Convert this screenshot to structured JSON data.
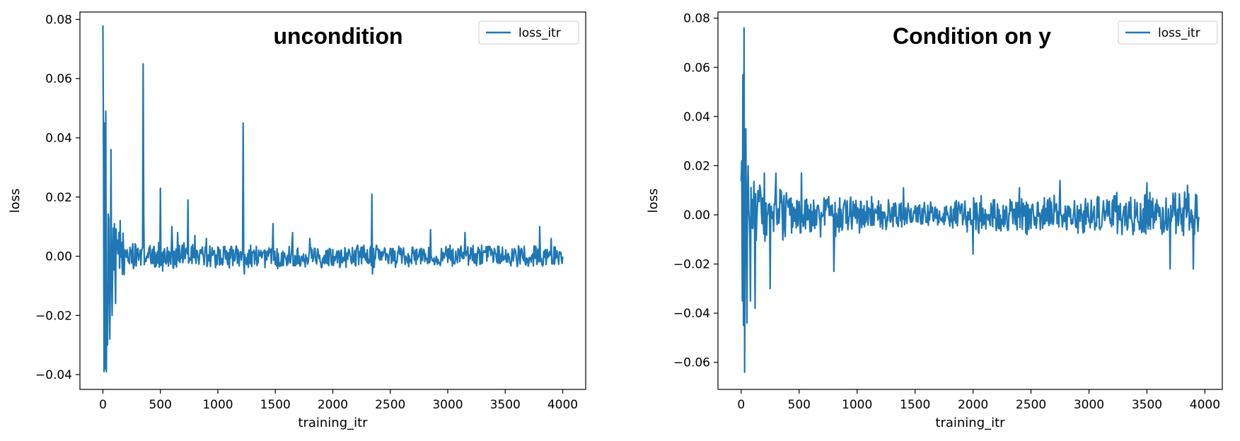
{
  "chart_data": [
    {
      "type": "line",
      "title": "",
      "annotation": "uncondition",
      "xlabel": "training_itr",
      "ylabel": "loss",
      "xlim": [
        -200,
        4200
      ],
      "ylim": [
        -0.045,
        0.0825
      ],
      "xticks": [
        0,
        500,
        1000,
        1500,
        2000,
        2500,
        3000,
        3500,
        4000
      ],
      "xtick_labels": [
        "0",
        "500",
        "1000",
        "1500",
        "2000",
        "2500",
        "3000",
        "3500",
        "4000"
      ],
      "yticks": [
        -0.04,
        -0.02,
        0.0,
        0.02,
        0.04,
        0.06,
        0.08
      ],
      "ytick_labels": [
        "−0.04",
        "−0.02",
        "0.00",
        "0.02",
        "0.04",
        "0.06",
        "0.08"
      ],
      "legend_position": "top-right",
      "grid": false,
      "series": [
        {
          "name": "loss_itr",
          "color": "#1f77b4",
          "x_range": [
            0,
            4000
          ],
          "noise_profile": [
            [
              0,
              0.02
            ],
            [
              100,
              0.01
            ],
            [
              300,
              0.005
            ],
            [
              1000,
              0.004
            ],
            [
              2000,
              0.004
            ],
            [
              4000,
              0.0035
            ]
          ],
          "spikes": [
            [
              0,
              0.078
            ],
            [
              5,
              0.034
            ],
            [
              10,
              -0.039
            ],
            [
              15,
              0.045
            ],
            [
              20,
              -0.038
            ],
            [
              25,
              0.049
            ],
            [
              30,
              -0.039
            ],
            [
              40,
              -0.03
            ],
            [
              50,
              0.013
            ],
            [
              60,
              -0.028
            ],
            [
              70,
              0.036
            ],
            [
              80,
              -0.02
            ],
            [
              100,
              0.011
            ],
            [
              110,
              -0.016
            ],
            [
              150,
              0.012
            ],
            [
              350,
              0.065
            ],
            [
              355,
              0.015
            ],
            [
              500,
              0.023
            ],
            [
              520,
              -0.005
            ],
            [
              600,
              0.01
            ],
            [
              650,
              0.008
            ],
            [
              740,
              0.019
            ],
            [
              800,
              0.007
            ],
            [
              900,
              0.006
            ],
            [
              1220,
              0.045
            ],
            [
              1230,
              -0.006
            ],
            [
              1480,
              0.011
            ],
            [
              1650,
              0.008
            ],
            [
              1800,
              0.006
            ],
            [
              2340,
              0.021
            ],
            [
              2345,
              -0.006
            ],
            [
              2850,
              0.009
            ],
            [
              3150,
              0.008
            ],
            [
              3800,
              0.01
            ],
            [
              3900,
              0.006
            ]
          ]
        }
      ]
    },
    {
      "type": "line",
      "title": "",
      "annotation": "Condition on y",
      "xlabel": "training_itr",
      "ylabel": "loss",
      "xlim": [
        -200,
        4150
      ],
      "ylim": [
        -0.071,
        0.0825
      ],
      "xticks": [
        0,
        500,
        1000,
        1500,
        2000,
        2500,
        3000,
        3500,
        4000
      ],
      "xtick_labels": [
        "0",
        "500",
        "1000",
        "1500",
        "2000",
        "2500",
        "3000",
        "3500",
        "4000"
      ],
      "yticks": [
        -0.06,
        -0.04,
        -0.02,
        0.0,
        0.02,
        0.04,
        0.06,
        0.08
      ],
      "ytick_labels": [
        "−0.06",
        "−0.04",
        "−0.02",
        "0.00",
        "0.02",
        "0.04",
        "0.06",
        "0.08"
      ],
      "legend_position": "top-right",
      "grid": false,
      "series": [
        {
          "name": "loss_itr",
          "color": "#1f77b4",
          "x_range": [
            0,
            3950
          ],
          "noise_profile": [
            [
              0,
              0.022
            ],
            [
              100,
              0.014
            ],
            [
              300,
              0.011
            ],
            [
              1000,
              0.0075
            ],
            [
              1500,
              0.005
            ],
            [
              2000,
              0.0075
            ],
            [
              2500,
              0.008
            ],
            [
              3000,
              0.008
            ],
            [
              3500,
              0.0095
            ],
            [
              3950,
              0.01
            ]
          ],
          "spikes": [
            [
              5,
              0.022
            ],
            [
              10,
              -0.035
            ],
            [
              15,
              0.057
            ],
            [
              20,
              -0.045
            ],
            [
              25,
              0.076
            ],
            [
              30,
              -0.064
            ],
            [
              40,
              0.035
            ],
            [
              50,
              -0.044
            ],
            [
              60,
              0.02
            ],
            [
              80,
              -0.035
            ],
            [
              120,
              -0.038
            ],
            [
              200,
              0.017
            ],
            [
              250,
              -0.03
            ],
            [
              300,
              0.017
            ],
            [
              520,
              0.017
            ],
            [
              800,
              -0.023
            ],
            [
              1400,
              0.011
            ],
            [
              2000,
              -0.016
            ],
            [
              2400,
              0.011
            ],
            [
              2750,
              0.014
            ],
            [
              3500,
              0.013
            ],
            [
              3700,
              -0.022
            ],
            [
              3850,
              0.012
            ],
            [
              3900,
              -0.022
            ]
          ]
        }
      ]
    }
  ]
}
